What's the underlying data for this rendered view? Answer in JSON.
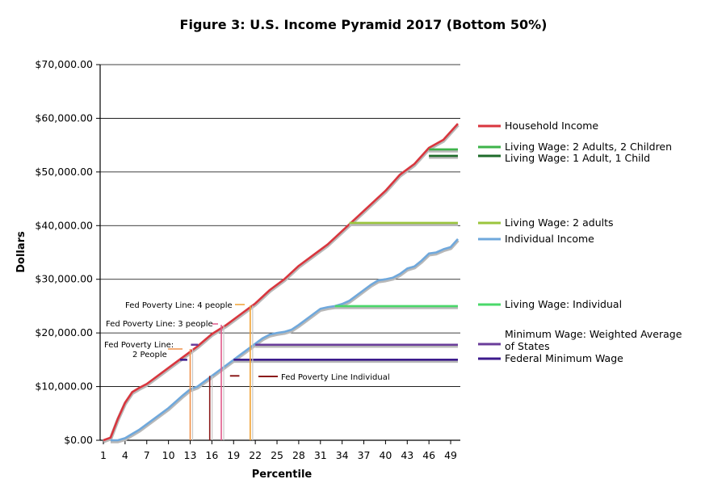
{
  "chart_data": {
    "type": "line",
    "title": "Figure 3: U.S. Income Pyramid 2017 (Bottom 50%)",
    "xlabel": "Percentile",
    "ylabel": "Dollars",
    "xlim": [
      1,
      50
    ],
    "ylim": [
      0,
      70000
    ],
    "x_ticks": [
      1,
      4,
      7,
      10,
      13,
      16,
      19,
      22,
      25,
      28,
      31,
      34,
      37,
      40,
      43,
      46,
      49
    ],
    "y_ticks": [
      0,
      10000,
      20000,
      30000,
      40000,
      50000,
      60000,
      70000
    ],
    "y_tick_labels": [
      "$0.00",
      "$10,000.00",
      "$20,000.00",
      "$30,000.00",
      "$40,000.00",
      "$50,000.00",
      "$60,000.00",
      "$70,000.00"
    ],
    "grid": "horizontal",
    "legend_position": "right",
    "series": [
      {
        "name": "Household Income",
        "color": "#d9363e",
        "x": [
          1,
          2,
          3,
          4,
          5,
          6,
          7,
          8,
          10,
          12,
          14,
          16,
          18,
          20,
          22,
          24,
          26,
          28,
          30,
          32,
          34,
          36,
          38,
          40,
          42,
          44,
          46,
          48,
          50
        ],
        "y": [
          0,
          500,
          4000,
          7000,
          9000,
          9800,
          10500,
          11500,
          13500,
          15500,
          17500,
          19800,
          21500,
          23500,
          25500,
          28000,
          30000,
          32500,
          34500,
          36500,
          39000,
          41500,
          44000,
          46500,
          49500,
          51500,
          54500,
          56000,
          59000
        ]
      },
      {
        "name": "Individual Income",
        "color": "#6fa8dc",
        "x": [
          2,
          3,
          4,
          5,
          6,
          7,
          8,
          9,
          10,
          11,
          12,
          13,
          14,
          15,
          16,
          17,
          18,
          19,
          20,
          21,
          22,
          23,
          24,
          25,
          26,
          27,
          28,
          29,
          30,
          31,
          32,
          33,
          34,
          35,
          36,
          37,
          38,
          39,
          40,
          41,
          42,
          43,
          44,
          45,
          46,
          47,
          48,
          49,
          50
        ],
        "y": [
          0,
          0,
          400,
          1200,
          2000,
          3000,
          4000,
          5000,
          6000,
          7200,
          8400,
          9500,
          10000,
          11000,
          12000,
          13000,
          14000,
          15000,
          16000,
          17000,
          18000,
          19000,
          19700,
          20000,
          20200,
          20600,
          21500,
          22500,
          23500,
          24500,
          24800,
          25000,
          25400,
          26000,
          27000,
          28000,
          29000,
          29800,
          30000,
          30300,
          31000,
          32000,
          32400,
          33500,
          34800,
          35000,
          35600,
          36000,
          37500
        ]
      },
      {
        "name": "Living Wage: 2 Adults, 2 Children",
        "color": "#3db34a",
        "x": [
          46,
          50
        ],
        "y": [
          54200,
          54200
        ]
      },
      {
        "name": "Living Wage: 1 Adult, 1 Child",
        "color": "#1e6b2a",
        "x": [
          46,
          50
        ],
        "y": [
          53000,
          53000
        ]
      },
      {
        "name": "Living Wage: 2 adults",
        "color": "#9bc53d",
        "x": [
          35,
          50
        ],
        "y": [
          40500,
          40500
        ]
      },
      {
        "name": "Living Wage: Individual",
        "color": "#4ad86a",
        "x": [
          33,
          50
        ],
        "y": [
          25000,
          25000
        ]
      },
      {
        "name": "Minimum Wage: Weighted Average of States",
        "color": "#6a3d9a",
        "x": [
          22,
          50
        ],
        "y": [
          17800,
          17800
        ]
      },
      {
        "name": "Federal Minimum Wage",
        "color": "#3c1a8c",
        "x": [
          19,
          50
        ],
        "y": [
          15000,
          15000
        ]
      }
    ],
    "legend": {
      "household": "Household Income",
      "lw_2a2c": "Living Wage: 2 Adults, 2 Children",
      "lw_1a1c": "Living Wage: 1 Adult, 1 Child",
      "lw_2a": "Living Wage: 2 adults",
      "individual": "Individual Income",
      "lw_ind": "Living Wage: Individual",
      "minwage_line1": "Minimum Wage: Weighted Average",
      "minwage_line2": "of States",
      "fed_min": "Federal Minimum Wage"
    },
    "annotations": {
      "fpl4": "Fed Poverty Line: 4 people",
      "fpl3": "Fed Poverty Line: 3 people",
      "fpl2_line1": "Fed Poverty Line:",
      "fpl2_line2": "2 People",
      "fpl1": "Fed Poverty Line Individual"
    },
    "poverty_markers": [
      {
        "label": "Fed Poverty Line: 4 people",
        "color": "#f0a030",
        "value": 25100,
        "percentile": 21.3
      },
      {
        "label": "Fed Poverty Line: 3 people",
        "color": "#e05a8a",
        "value": 21500,
        "percentile": 17.3
      },
      {
        "label": "Fed Poverty Line: 2 People",
        "color": "#f0904a",
        "value": 17000,
        "percentile": 13.0
      },
      {
        "label": "Fed Poverty Line Individual",
        "color": "#8b1a1a",
        "value": 12000,
        "percentile": 15.7
      }
    ]
  }
}
